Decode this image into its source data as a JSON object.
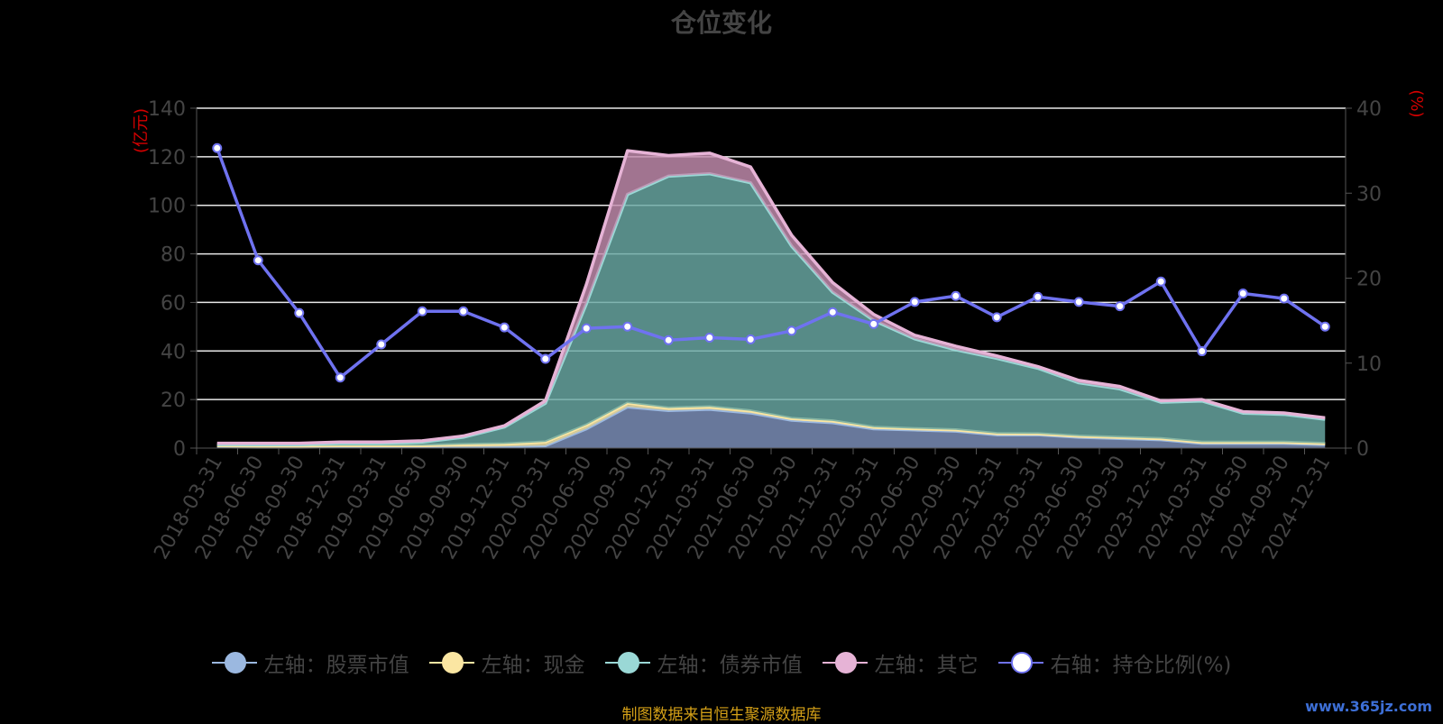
{
  "title": "仓位变化",
  "left_axis_unit": "(亿元)",
  "right_axis_unit": "(%)",
  "source": "制图数据来自恒生聚源数据库",
  "watermark": "www.365jz.com",
  "colors": {
    "stock": "#9bb8e0",
    "cash": "#fbe6a2",
    "bond": "#9ad8d6",
    "other": "#e6b3d6",
    "ratio": "#6f72f0",
    "axis_unit": "#d40000"
  },
  "legend": [
    {
      "key": "stock",
      "label": "左轴：股票市值"
    },
    {
      "key": "cash",
      "label": "左轴：现金"
    },
    {
      "key": "bond",
      "label": "左轴：债券市值"
    },
    {
      "key": "other",
      "label": "左轴：其它"
    },
    {
      "key": "ratio",
      "label": "右轴：持仓比例(%)"
    }
  ],
  "chart_data": {
    "type": "area",
    "title": "仓位变化",
    "y_left": {
      "label": "(亿元)",
      "range": [
        0,
        140
      ],
      "ticks": [
        0,
        20,
        40,
        60,
        80,
        100,
        120,
        140
      ]
    },
    "y_right": {
      "label": "(%)",
      "range": [
        0,
        40
      ],
      "ticks": [
        0,
        10,
        20,
        30,
        40
      ]
    },
    "grid": true,
    "legend_position": "bottom",
    "categories": [
      "2018-03-31",
      "2018-06-30",
      "2018-09-30",
      "2018-12-31",
      "2019-03-31",
      "2019-06-30",
      "2019-09-30",
      "2019-12-31",
      "2020-03-31",
      "2020-06-30",
      "2020-09-30",
      "2020-12-31",
      "2021-03-31",
      "2021-06-30",
      "2021-09-30",
      "2021-12-31",
      "2022-03-31",
      "2022-06-30",
      "2022-09-30",
      "2022-12-31",
      "2023-03-31",
      "2023-06-30",
      "2023-09-30",
      "2023-12-31",
      "2024-03-31",
      "2024-06-30",
      "2024-09-30",
      "2024-12-31"
    ],
    "series": [
      {
        "name": "左轴：股票市值",
        "axis": "left",
        "values": [
          0.5,
          0.4,
          0.4,
          0.5,
          0.5,
          0.5,
          0.5,
          0.7,
          1.0,
          8,
          17,
          15.5,
          16,
          14.5,
          11.5,
          10.5,
          8,
          7.5,
          7,
          5.5,
          5.5,
          4.5,
          4,
          3.5,
          2,
          2,
          2,
          1.5
        ]
      },
      {
        "name": "左轴：现金",
        "axis": "left",
        "values": [
          0.5,
          0.5,
          0.5,
          0.5,
          0.5,
          0.5,
          1.0,
          1.0,
          1.5,
          1.5,
          1.5,
          1.0,
          1.0,
          0.8,
          0.7,
          0.7,
          0.6,
          0.5,
          0.5,
          0.5,
          0.4,
          0.4,
          0.4,
          0.4,
          0.4,
          0.4,
          0.4,
          0.4
        ]
      },
      {
        "name": "左轴：债券市值",
        "axis": "left",
        "values": [
          0.5,
          0.5,
          0.5,
          1.0,
          1.0,
          1.5,
          3,
          7,
          16,
          50,
          86,
          95.5,
          96,
          94,
          71,
          53,
          44,
          37,
          33,
          31,
          27,
          22,
          20,
          15,
          17,
          12,
          11.5,
          10
        ]
      },
      {
        "name": "左轴：其它",
        "axis": "left",
        "values": [
          0.5,
          0.6,
          0.6,
          0.5,
          0.5,
          0.5,
          0.5,
          0.5,
          1.0,
          8,
          18,
          8.5,
          8.5,
          6.5,
          4.5,
          4,
          2.5,
          1.5,
          1.5,
          1.0,
          0.7,
          1.0,
          1.0,
          0.6,
          0.6,
          0.6,
          0.6,
          0.6
        ]
      },
      {
        "name": "右轴：持仓比例(%)",
        "axis": "right",
        "type": "line",
        "values": [
          35.3,
          22.1,
          15.9,
          8.3,
          12.2,
          16.1,
          16.1,
          14.2,
          10.5,
          14.1,
          14.3,
          12.7,
          13.0,
          12.8,
          13.8,
          16.0,
          14.6,
          17.2,
          17.9,
          15.4,
          17.8,
          17.2,
          16.7,
          19.6,
          11.4,
          18.2,
          17.6,
          14.3
        ]
      }
    ]
  }
}
